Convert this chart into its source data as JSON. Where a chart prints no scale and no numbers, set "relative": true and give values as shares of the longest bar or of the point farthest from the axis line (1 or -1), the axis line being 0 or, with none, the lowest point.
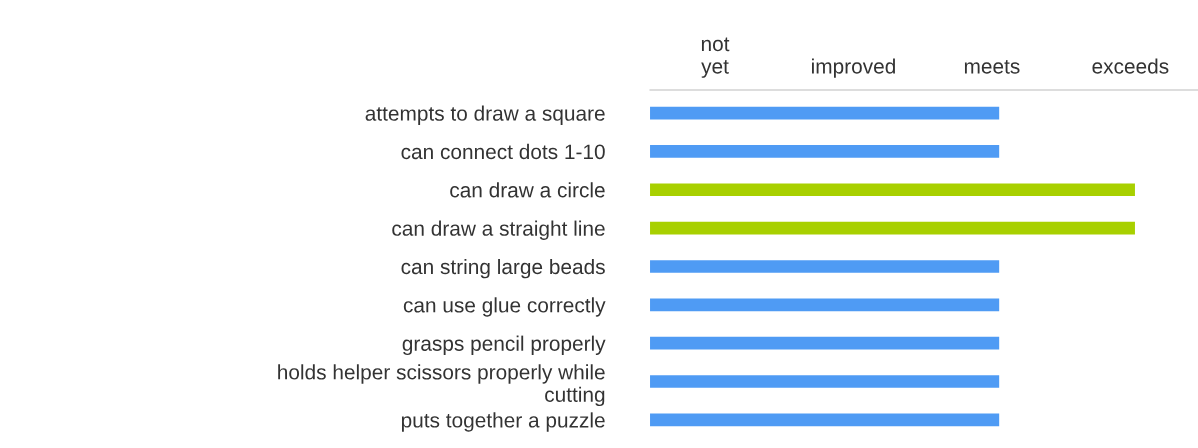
{
  "chart_data": {
    "type": "bar",
    "orientation": "horizontal",
    "relative": true,
    "categories": [
      "attempts to draw a square",
      "can connect dots 1-10",
      "can draw a circle",
      "can draw a straight line",
      "can string large beads",
      "can use glue correctly",
      "grasps pencil properly",
      "holds helper scissors properly while\ncutting",
      "puts together a puzzle"
    ],
    "values": [
      0.72,
      0.72,
      1,
      1,
      0.72,
      0.72,
      0.72,
      0.72,
      0.72
    ],
    "colors": [
      "#4f9bf4",
      "#4f9bf4",
      "#a8d000",
      "#a8d000",
      "#4f9bf4",
      "#4f9bf4",
      "#4f9bf4",
      "#4f9bf4",
      "#4f9bf4"
    ],
    "annotations": [
      "not\nyet",
      "improved",
      "meets",
      "exceeds"
    ],
    "grid": false,
    "legend": false
  }
}
